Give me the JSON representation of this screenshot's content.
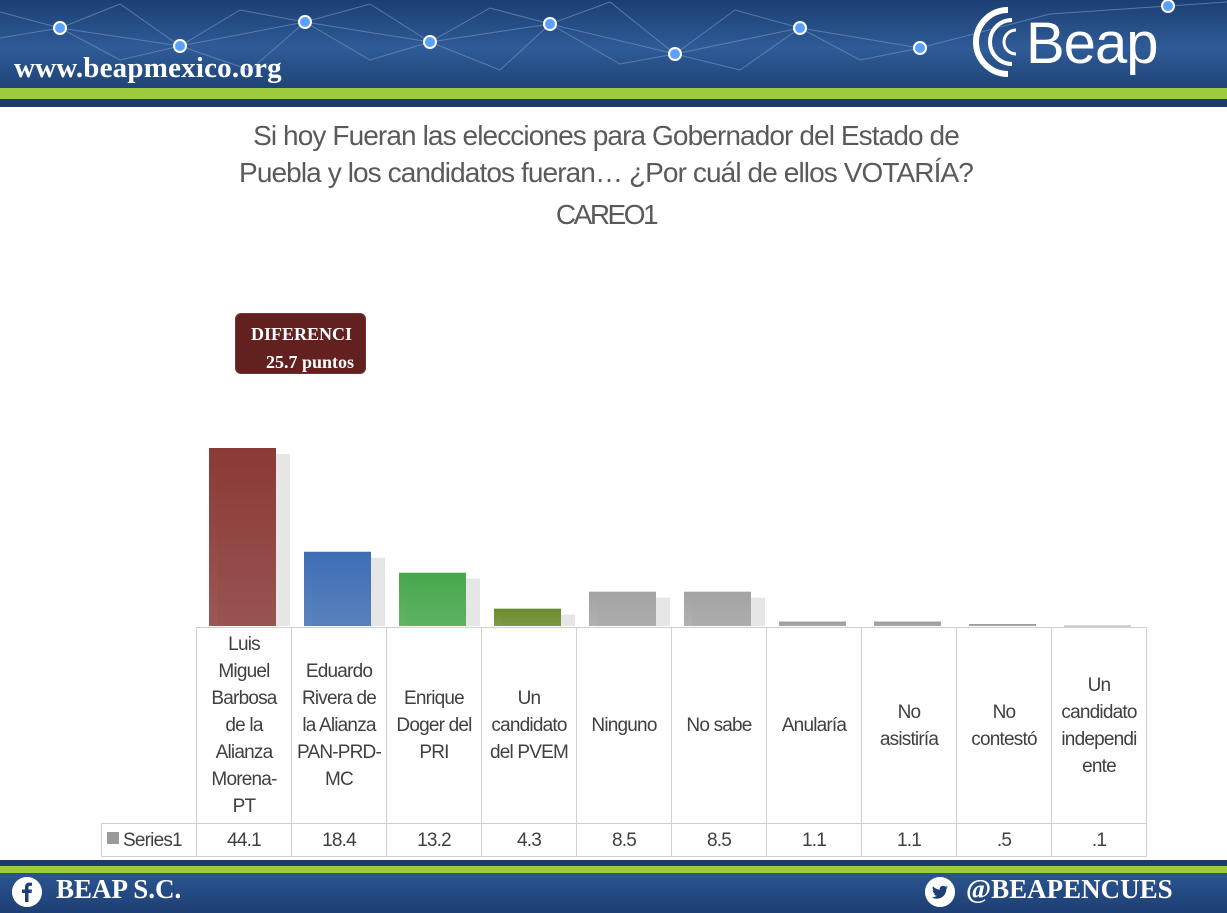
{
  "header": {
    "site_url": "www.beapmexico.org",
    "logo_text": "Beap"
  },
  "title_lines": [
    "Si hoy Fueran las elecciones para Gobernador del Estado de",
    "Puebla y los candidatos fueran… ¿Por cuál de ellos VOTARÍA?"
  ],
  "subtitle": "CAREO1",
  "callout": {
    "line1": "DIFERENCI",
    "line2": "25.7 puntos"
  },
  "chart_data": {
    "type": "bar",
    "categories": [
      "Luis Miguel Barbosa de la Alianza Morena-PT",
      "Eduardo Rivera de la Alianza PAN-PRD-MC",
      "Enrique Doger del PRI",
      "Un candidato del PVEM",
      "Ninguno",
      "No sabe",
      "Anularía",
      "No asistiría",
      "No contestó",
      "Un candidato independiente"
    ],
    "category_lines": [
      [
        "Luis",
        "Miguel",
        "Barbosa",
        "de la",
        "Alianza",
        "Morena-",
        "PT"
      ],
      [
        "Eduardo",
        "Rivera de",
        "la Alianza",
        "PAN-PRD-",
        "MC"
      ],
      [
        "Enrique",
        "Doger del",
        "PRI"
      ],
      [
        "Un",
        "candidato",
        "del PVEM"
      ],
      [
        "Ninguno"
      ],
      [
        "No sabe"
      ],
      [
        "Anularía"
      ],
      [
        "No",
        "asistiría"
      ],
      [
        "No",
        "contestó"
      ],
      [
        "Un",
        "candidato",
        "independi",
        "ente"
      ]
    ],
    "series": [
      {
        "name": "Series1",
        "values": [
          44.1,
          18.4,
          13.2,
          4.3,
          8.5,
          8.5,
          1.1,
          1.1,
          0.5,
          0.1
        ],
        "value_labels": [
          "44.1",
          "18.4",
          "13.2",
          "4.3",
          "8.5",
          "8.5",
          "1.1",
          "1.1",
          ".5",
          ".1"
        ]
      }
    ],
    "bar_colors": [
      "#8b3a36",
      "#3f6eb5",
      "#46a84b",
      "#6a8a2c",
      "#a3a3a3",
      "#a3a3a3",
      "#9b9b9b",
      "#9b9b9b",
      "#9b9b9b",
      "#9b9b9b"
    ],
    "ylim": [
      0,
      44.1
    ],
    "legend": "data-table",
    "grid": false
  },
  "footer": {
    "brand": "BEAP S.C.",
    "handle": "@BEAPENCUES"
  },
  "icons": [
    "facebook-icon",
    "twitter-icon"
  ]
}
